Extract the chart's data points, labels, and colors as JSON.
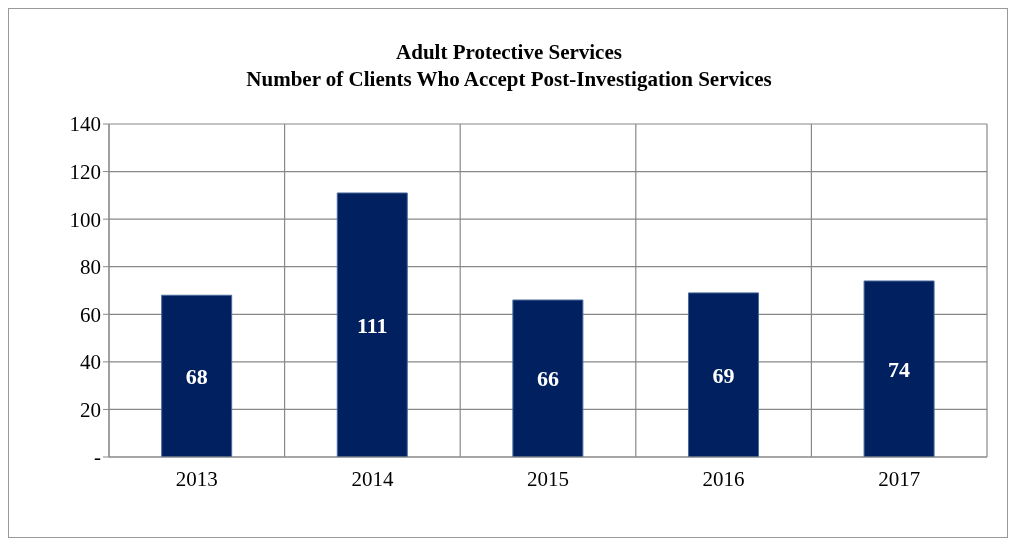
{
  "chart_data": {
    "type": "bar",
    "title": "Adult Protective Services",
    "subtitle": "Number of Clients Who Accept Post-Investigation Services",
    "categories": [
      "2013",
      "2014",
      "2015",
      "2016",
      "2017"
    ],
    "values": [
      68,
      111,
      66,
      69,
      74
    ],
    "color": "#002060",
    "ylim": [
      0,
      140
    ],
    "yticks": [
      {
        "value": 0,
        "label": "-"
      },
      20,
      40,
      60,
      80,
      100,
      120,
      140
    ],
    "grid": true,
    "data_labels": true
  }
}
